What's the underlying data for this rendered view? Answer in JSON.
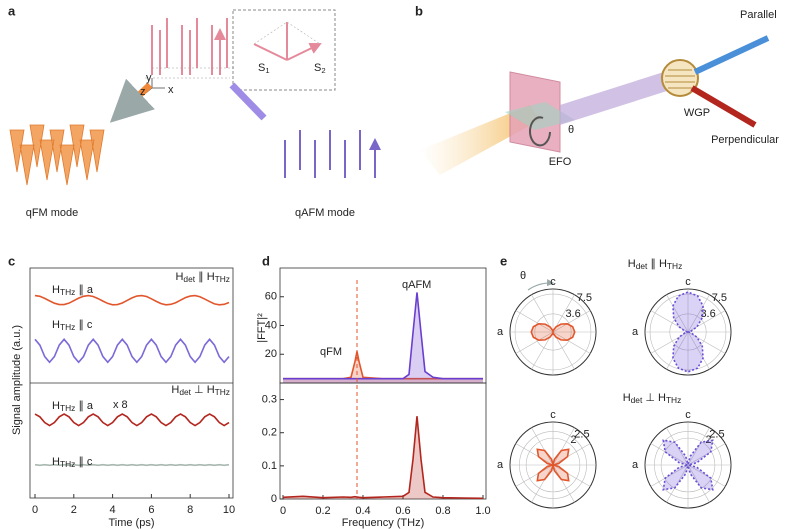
{
  "chart_data": [
    {
      "type": "line",
      "xlabel": "Time (ps)",
      "ylabel": "Signal amplitude (a.u.)",
      "xlim": [
        0,
        10
      ],
      "xticks": [
        0,
        2,
        4,
        6,
        8,
        10
      ],
      "ylim": [
        0,
        10
      ],
      "headers": [
        [
          "H",
          "det",
          " ∥ H",
          "THz"
        ],
        [
          "H",
          "det",
          " ⊥ H",
          "THz"
        ]
      ],
      "annotation": "x 8",
      "x": [
        0,
        0.25,
        0.5,
        0.75,
        1,
        1.25,
        1.5,
        1.75,
        2,
        2.25,
        2.5,
        2.75,
        3,
        3.25,
        3.5,
        3.75,
        4,
        4.25,
        4.5,
        4.75,
        5,
        5.25,
        5.5,
        5.75,
        6,
        6.25,
        6.5,
        6.75,
        7,
        7.25,
        7.5,
        7.75,
        8,
        8.25,
        8.5,
        8.75,
        9,
        9.25,
        9.5,
        9.75,
        10
      ],
      "series": [
        {
          "name": [
            "H",
            "THz",
            " ∥ a"
          ],
          "color": "#e2562c",
          "values": [
            8.8,
            8.77,
            8.68,
            8.57,
            8.47,
            8.41,
            8.41,
            8.47,
            8.58,
            8.69,
            8.77,
            8.8,
            8.76,
            8.67,
            8.56,
            8.46,
            8.4,
            8.41,
            8.48,
            8.59,
            8.7,
            8.78,
            8.8,
            8.76,
            8.66,
            8.55,
            8.45,
            8.4,
            8.42,
            8.49,
            8.6,
            8.71,
            8.78,
            8.8,
            8.75,
            8.65,
            8.54,
            8.44,
            8.4,
            8.42,
            8.5
          ]
        },
        {
          "name": [
            "H",
            "THz",
            " ∥ c"
          ],
          "color": "#7b6ad8",
          "values": [
            6.9,
            6.65,
            6.15,
            5.9,
            6.15,
            6.65,
            6.9,
            6.65,
            6.15,
            5.9,
            6.15,
            6.65,
            6.9,
            6.65,
            6.15,
            5.9,
            6.15,
            6.65,
            6.9,
            6.65,
            6.15,
            5.9,
            6.15,
            6.65,
            6.9,
            6.65,
            6.15,
            5.9,
            6.15,
            6.65,
            6.9,
            6.65,
            6.15,
            5.9,
            6.15,
            6.65,
            6.9,
            6.65,
            6.15,
            5.9,
            6.15
          ]
        },
        {
          "name": [
            "H",
            "THz",
            " ∥ a"
          ],
          "color": "#b3261e",
          "values": [
            3.65,
            3.53,
            3.28,
            3.15,
            3.28,
            3.53,
            3.65,
            3.53,
            3.28,
            3.15,
            3.28,
            3.53,
            3.65,
            3.53,
            3.28,
            3.15,
            3.28,
            3.53,
            3.65,
            3.53,
            3.28,
            3.15,
            3.28,
            3.53,
            3.65,
            3.53,
            3.28,
            3.15,
            3.28,
            3.53,
            3.65,
            3.53,
            3.28,
            3.15,
            3.28,
            3.53,
            3.65,
            3.53,
            3.28,
            3.15,
            3.28
          ]
        },
        {
          "name": [
            "H",
            "THz",
            " ∥ c"
          ],
          "color": "#a9b8b0",
          "values": [
            1.45,
            1.42,
            1.45,
            1.42,
            1.45,
            1.42,
            1.45,
            1.42,
            1.45,
            1.42,
            1.45,
            1.42,
            1.45,
            1.42,
            1.45,
            1.42,
            1.45,
            1.42,
            1.45,
            1.42,
            1.45,
            1.42,
            1.45,
            1.42,
            1.45,
            1.42,
            1.45,
            1.42,
            1.45,
            1.42,
            1.45,
            1.42,
            1.45,
            1.42,
            1.45,
            1.42,
            1.45,
            1.42,
            1.45,
            1.42,
            1.45
          ]
        }
      ]
    },
    {
      "type": "line",
      "ylabel": "|FFT|²",
      "xlim": [
        0,
        1
      ],
      "ylim": [
        0,
        80
      ],
      "yticks": [
        20,
        40,
        60
      ],
      "fill": true,
      "x": [
        0,
        0.1,
        0.2,
        0.3,
        0.34,
        0.36,
        0.37,
        0.38,
        0.4,
        0.5,
        0.6,
        0.63,
        0.65,
        0.67,
        0.69,
        0.71,
        0.75,
        0.8,
        0.9,
        1
      ],
      "series": [
        {
          "name": "qFM",
          "color": "#e2562c",
          "values": [
            3,
            3,
            3,
            3,
            4,
            15,
            22,
            15,
            4,
            3,
            3,
            3,
            3,
            3,
            3,
            3,
            3,
            3,
            3,
            3
          ]
        },
        {
          "name": "qAFM",
          "color": "#6a3fd0",
          "values": [
            3,
            3,
            3,
            3,
            3,
            3,
            3,
            3,
            3,
            3,
            3,
            6,
            35,
            63,
            35,
            8,
            4,
            3,
            3,
            3
          ]
        }
      ]
    },
    {
      "type": "line",
      "xlabel": "Frequency (THz)",
      "xlim": [
        0,
        1
      ],
      "ylim": [
        0,
        0.35
      ],
      "yticks": [
        0,
        0.1,
        0.2,
        0.3
      ],
      "fill": true,
      "xticks": [
        0,
        0.2,
        0.4,
        0.6,
        0.8,
        {
          "value": 1,
          "label": "1.0"
        }
      ],
      "dashed_x": 0.37,
      "x": [
        0,
        0.1,
        0.2,
        0.3,
        0.34,
        0.36,
        0.37,
        0.38,
        0.4,
        0.5,
        0.6,
        0.63,
        0.65,
        0.67,
        0.69,
        0.71,
        0.75,
        0.8,
        0.9,
        1
      ],
      "series": [
        {
          "color": "#b3261e",
          "values": [
            0.005,
            0.008,
            0.004,
            0.006,
            0.005,
            0.007,
            0.006,
            0.005,
            0.004,
            0.006,
            0.008,
            0.02,
            0.12,
            0.25,
            0.12,
            0.02,
            0.006,
            0.004,
            0.003,
            0.002
          ]
        }
      ]
    },
    {
      "type": "polar",
      "rlim": [
        0,
        8.5
      ],
      "rticks": [
        3.6,
        7.5
      ],
      "axis_labels": [
        "c",
        "a"
      ],
      "theta": [
        0,
        15,
        30,
        45,
        60,
        75,
        90,
        105,
        120,
        135,
        150,
        165,
        180,
        195,
        210,
        225,
        240,
        255,
        270,
        285,
        300,
        315,
        330,
        345
      ],
      "series": [
        {
          "color": "#e2562c",
          "values": [
            4.3,
            4.02,
            3.25,
            2.2,
            1.15,
            0.38,
            0.1,
            0.38,
            1.15,
            2.2,
            3.25,
            4.02,
            4.3,
            4.02,
            3.25,
            2.2,
            1.15,
            0.38,
            0.1,
            0.38,
            1.15,
            2.2,
            3.25,
            4.02
          ]
        }
      ]
    },
    {
      "type": "polar",
      "rlim": [
        0,
        8.5
      ],
      "rticks": [
        3.6,
        7.5
      ],
      "axis_labels": [
        "c",
        "a"
      ],
      "theta": [
        0,
        15,
        30,
        45,
        60,
        75,
        90,
        105,
        120,
        135,
        150,
        165,
        180,
        195,
        210,
        225,
        240,
        255,
        270,
        285,
        300,
        315,
        330,
        345
      ],
      "series": [
        {
          "color": "#6a4fd8",
          "values": [
            0.1,
            0.62,
            2.05,
            4.0,
            5.95,
            7.38,
            7.9,
            7.38,
            5.95,
            4.0,
            2.05,
            0.62,
            0.1,
            0.62,
            2.05,
            4.0,
            5.95,
            7.38,
            7.9,
            7.38,
            5.95,
            4.0,
            2.05,
            0.62
          ]
        }
      ]
    },
    {
      "type": "polar",
      "rlim": [
        0,
        3.2
      ],
      "rticks": [
        2,
        2.5
      ],
      "axis_labels": [
        "c",
        "a"
      ],
      "theta": [
        0,
        15,
        30,
        45,
        60,
        75,
        90,
        105,
        120,
        135,
        150,
        165,
        180,
        195,
        210,
        225,
        240,
        255,
        270,
        285,
        300,
        315,
        330,
        345
      ],
      "series": [
        {
          "color": "#e2562c",
          "values": [
            0.05,
            0.45,
            1.25,
            1.65,
            1.25,
            0.45,
            0.05,
            0.45,
            1.25,
            1.65,
            1.25,
            0.45,
            0.05,
            0.45,
            1.25,
            1.65,
            1.25,
            0.45,
            0.05,
            0.45,
            1.25,
            1.65,
            1.25,
            0.45
          ]
        }
      ]
    },
    {
      "type": "polar",
      "rlim": [
        0,
        3.2
      ],
      "rticks": [
        2,
        2.5
      ],
      "axis_labels": [
        "c",
        "a"
      ],
      "theta": [
        0,
        15,
        30,
        45,
        60,
        75,
        90,
        105,
        120,
        135,
        150,
        165,
        180,
        195,
        210,
        225,
        240,
        255,
        270,
        285,
        300,
        315,
        330,
        345
      ],
      "series": [
        {
          "color": "#6a4fd8",
          "values": [
            0.05,
            0.69,
            1.96,
            2.6,
            1.96,
            0.69,
            0.05,
            0.69,
            1.96,
            2.6,
            1.96,
            0.69,
            0.05,
            0.69,
            1.96,
            2.6,
            1.96,
            0.69,
            0.05,
            0.69,
            1.96,
            2.6,
            1.96,
            0.69
          ]
        }
      ]
    }
  ],
  "diagram": {
    "panel_labels": [
      "a",
      "b",
      "c",
      "d",
      "e"
    ],
    "a": {
      "modes": [
        "qFM mode",
        "qAFM mode"
      ],
      "spins": [
        [
          "S",
          "1"
        ],
        [
          "S",
          "2"
        ]
      ],
      "axes": [
        "y",
        "z",
        "x"
      ]
    },
    "b": {
      "beams": [
        "Parallel",
        "Perpendicular"
      ],
      "elements": [
        "WGP",
        "EFO"
      ],
      "angle": "θ"
    },
    "e": {
      "headers": [
        [
          "H",
          "det",
          " ∥ H",
          "THz"
        ],
        [
          "H",
          "det",
          " ⊥ H",
          "THz"
        ]
      ],
      "angle": "θ"
    }
  }
}
